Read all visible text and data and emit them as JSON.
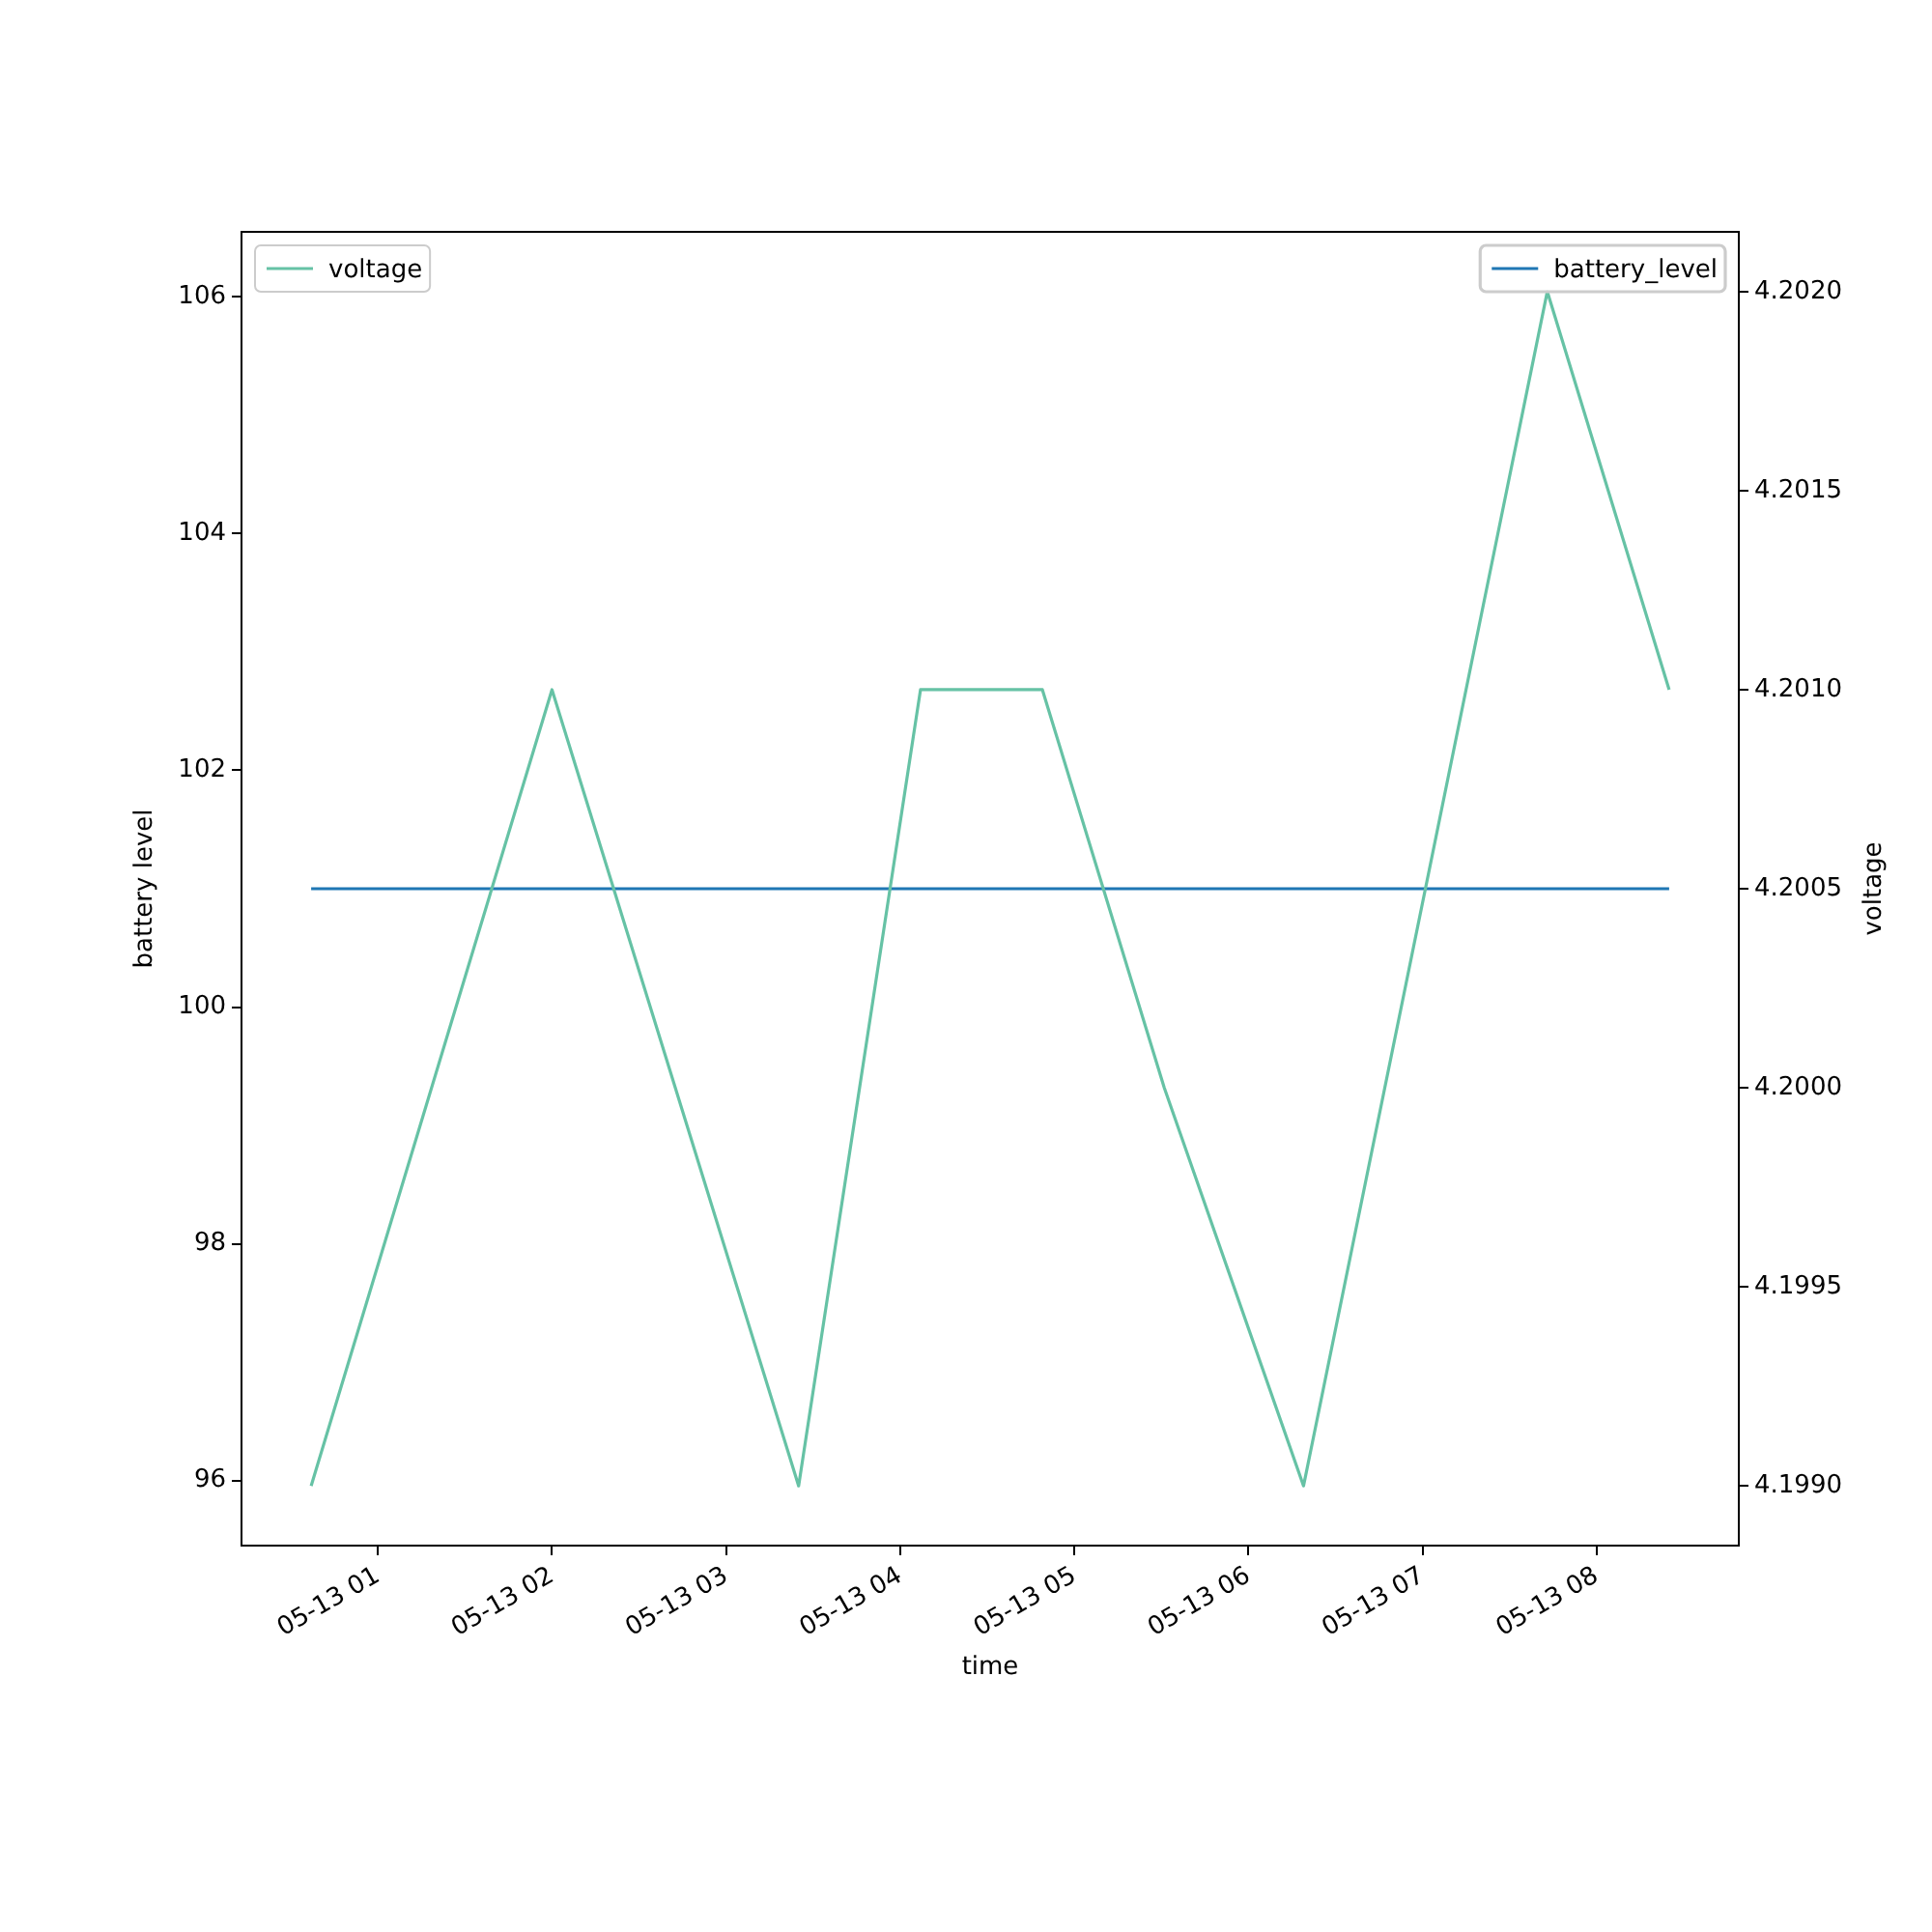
{
  "chart_data": {
    "type": "line",
    "xlabel": "time",
    "ylabel": "battery level",
    "y2label": "voltage",
    "legend": "top",
    "grid": false,
    "xlim": [
      "--05-13T00:13",
      "--05-13T08:49"
    ],
    "xticks": [
      {
        "value": "--05-13T01:00",
        "label": "05-13 01"
      },
      {
        "value": "--05-13T02:00",
        "label": "05-13 02"
      },
      {
        "value": "--05-13T03:00",
        "label": "05-13 03"
      },
      {
        "value": "--05-13T04:00",
        "label": "05-13 04"
      },
      {
        "value": "--05-13T05:00",
        "label": "05-13 05"
      },
      {
        "value": "--05-13T06:00",
        "label": "05-13 06"
      },
      {
        "value": "--05-13T07:00",
        "label": "05-13 07"
      },
      {
        "value": "--05-13T08:00",
        "label": "05-13 08"
      }
    ],
    "ylim": [
      95.45,
      106.55
    ],
    "yticks": [
      96,
      98,
      100,
      102,
      104,
      106
    ],
    "y2lim": [
      4.19885,
      4.20215
    ],
    "y2ticks": [
      {
        "value": 4.199,
        "label": "4.1990"
      },
      4.1995,
      {
        "value": 4.2,
        "label": "4.2000"
      },
      4.2005,
      {
        "value": 4.201,
        "label": "4.2010"
      },
      4.2015,
      {
        "value": 4.202,
        "label": "4.2020"
      }
    ],
    "series": [
      {
        "name": "voltage",
        "color": "#66c2a5",
        "axis": "y2",
        "x": [
          "--05-13T00:37",
          "--05-13T02:00",
          "--05-13T03:25",
          "--05-13T04:07",
          "--05-13T04:49",
          "--05-13T05:31",
          "--05-13T06:19",
          "--05-13T07:43",
          "--05-13T08:25"
        ],
        "values": [
          4.199,
          4.201,
          4.199,
          4.201,
          4.201,
          4.2,
          4.199,
          4.202,
          4.201
        ]
      },
      {
        "name": "battery_level",
        "color": "#1f77b4",
        "axis": "y",
        "x": [
          "--05-13T00:37",
          "--05-13T08:25"
        ],
        "values": [
          101,
          101
        ]
      }
    ]
  }
}
